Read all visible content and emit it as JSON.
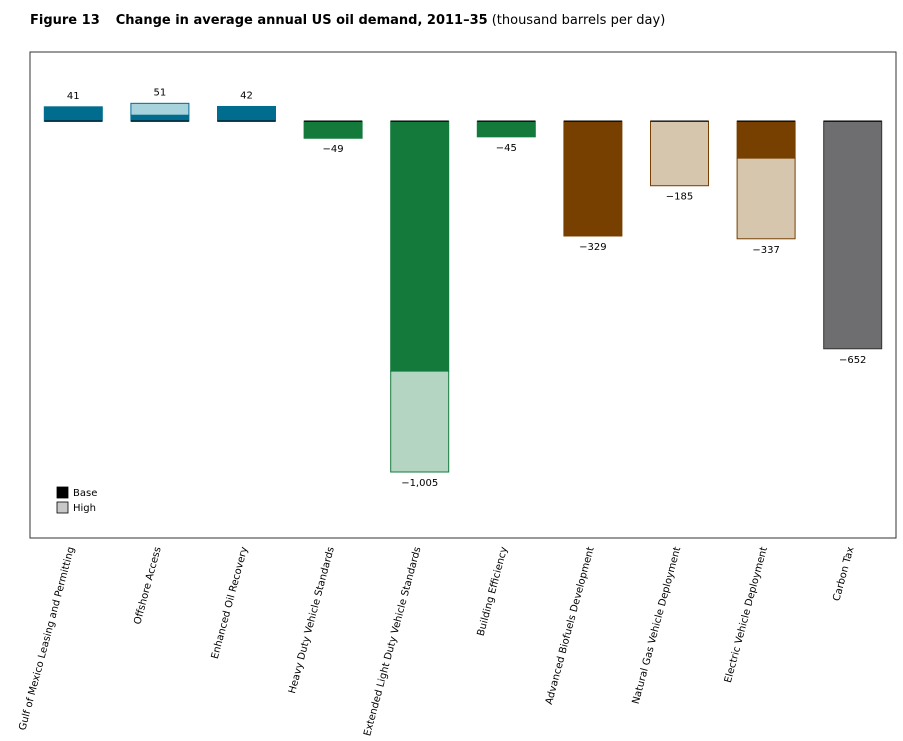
{
  "chart_data": {
    "type": "bar",
    "figure_label": "Figure 13",
    "title": "Change in average annual US oil demand, 2011–35",
    "units": "(thousand barrels per day)",
    "categories": [
      "Gulf of Mexico Leasing and Permitting",
      "Offshore Access",
      "Enhanced Oil Recovery",
      "Heavy Duty Vehicle Standards",
      "Extended Light Duty Vehicle Standards",
      "Building Efficiency",
      "Advanced Biofuels Development",
      "Natural Gas Vehicle Deployment",
      "Electric Vehicle Deployment",
      "Carbon Tax"
    ],
    "series": [
      {
        "name": "Base",
        "color": "#000000",
        "values": [
          41,
          17,
          42,
          -49,
          -716,
          -45,
          -329,
          0,
          -106,
          -652
        ],
        "colors": [
          "#006d8f",
          "#006d8f",
          "#006d8f",
          "#137a3c",
          "#137a3c",
          "#137a3c",
          "#773f00",
          "#773f00",
          "#773f00",
          "#6e6e70"
        ]
      },
      {
        "name": "High",
        "color": "#c8c8c8",
        "values": [
          0,
          34,
          0,
          0,
          -289,
          0,
          0,
          -185,
          -231,
          0
        ],
        "colors": [
          "#a9d3dc",
          "#a9d3dc",
          "#a9d3dc",
          "#b5d5c3",
          "#b5d5c3",
          "#b5d5c3",
          "#d6c6ad",
          "#d6c6ad",
          "#d6c6ad",
          "#c8c8c8"
        ]
      }
    ],
    "totals": {
      "values": [
        41,
        51,
        42,
        -49,
        -1005,
        -45,
        -329,
        -185,
        -337,
        -652
      ],
      "value_labels": [
        "41",
        "51",
        "42",
        "−49",
        "−1,005",
        "−45",
        "−329",
        "−185",
        "−337",
        "−652"
      ]
    },
    "ylim": [
      -1194,
      198
    ],
    "stacked": true,
    "legend": "lower-left"
  }
}
